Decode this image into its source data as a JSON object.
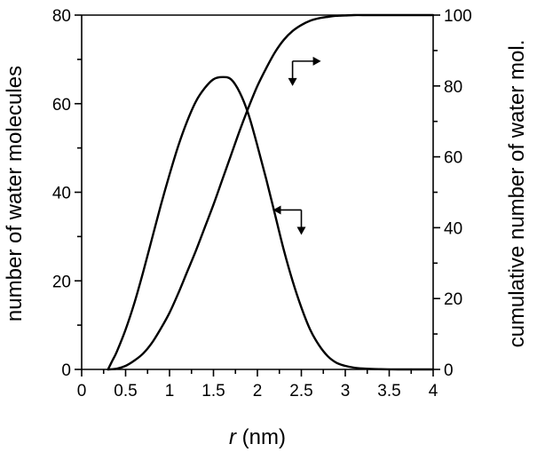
{
  "chart_data": {
    "type": "line",
    "xlabel_italic": "r",
    "xlabel_unit": " (nm)",
    "ylabel": "number of water molecules",
    "y2label": "cumulative number of water mol.",
    "xlim": [
      0,
      4
    ],
    "ylim": [
      0,
      80
    ],
    "y2lim": [
      0,
      100
    ],
    "x_ticks": [
      "0",
      "0.5",
      "1",
      "1.5",
      "2",
      "2.5",
      "3",
      "3.5",
      "4"
    ],
    "y_ticks": [
      "0",
      "20",
      "40",
      "60",
      "80"
    ],
    "y2_ticks": [
      "0",
      "20",
      "40",
      "60",
      "80",
      "100"
    ],
    "series": [
      {
        "name": "number of water molecules",
        "axis": "left",
        "x": [
          0.3,
          0.35,
          0.4,
          0.5,
          0.6,
          0.7,
          0.8,
          0.9,
          1.0,
          1.1,
          1.2,
          1.3,
          1.4,
          1.5,
          1.6,
          1.7,
          1.8,
          1.9,
          2.0,
          2.1,
          2.2,
          2.3,
          2.4,
          2.5,
          2.6,
          2.7,
          2.8,
          2.9,
          3.0,
          3.1,
          3.2,
          3.3,
          3.4,
          3.5,
          3.6,
          3.8,
          4.0
        ],
        "y": [
          0,
          2,
          4,
          9,
          15,
          22,
          29.5,
          37,
          44,
          50.5,
          56,
          60.5,
          63.5,
          65.5,
          66,
          65.5,
          62.5,
          57.5,
          50.5,
          43,
          35,
          27,
          20,
          14,
          9,
          5.5,
          3,
          1.5,
          0.8,
          0.4,
          0.2,
          0.1,
          0.05,
          0.02,
          0,
          0,
          0
        ]
      },
      {
        "name": "cumulative number of water molecules",
        "axis": "right",
        "x": [
          0.3,
          0.4,
          0.5,
          0.6,
          0.7,
          0.8,
          0.9,
          1.0,
          1.1,
          1.2,
          1.3,
          1.4,
          1.5,
          1.6,
          1.7,
          1.8,
          1.9,
          2.0,
          2.1,
          2.2,
          2.3,
          2.4,
          2.5,
          2.6,
          2.7,
          2.8,
          2.9,
          3.0,
          3.1,
          3.2,
          3.4,
          3.6,
          3.8,
          4.0
        ],
        "y": [
          0,
          0.2,
          1,
          2.5,
          4.5,
          7.5,
          11.5,
          16,
          21.5,
          27.5,
          33.5,
          40,
          46.5,
          53.5,
          60.5,
          67.5,
          74,
          80,
          85,
          89.5,
          93,
          95.5,
          97.2,
          98.4,
          99.1,
          99.5,
          99.8,
          99.9,
          100,
          100,
          100,
          100,
          100,
          100
        ]
      }
    ],
    "annotations": [
      {
        "text": "",
        "description": "arrows indicating curve points to right and bottom axes",
        "at_x": 2.4,
        "at_y2": 87
      },
      {
        "text": "",
        "description": "arrows indicating curve points to left and bottom axes",
        "at_x": 2.5,
        "at_y": 36
      }
    ]
  }
}
